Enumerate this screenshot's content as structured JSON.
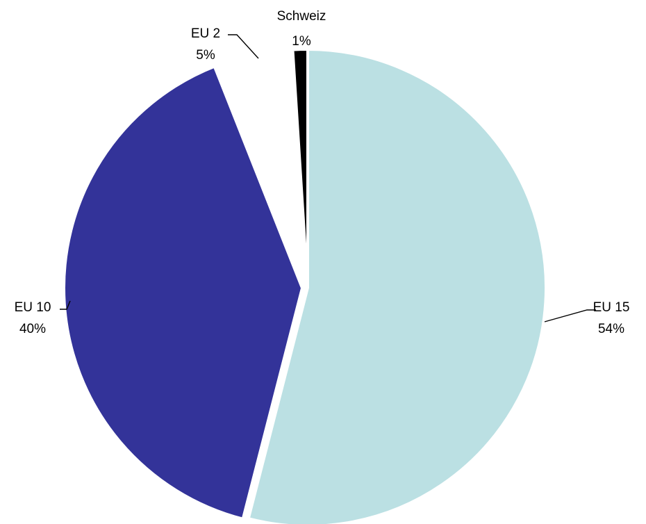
{
  "chart_data": {
    "type": "pie",
    "title": "",
    "slices": [
      {
        "label": "EU 15",
        "value": 54,
        "display": "54%",
        "color": "#bbe0e3"
      },
      {
        "label": "EU 10",
        "value": 40,
        "display": "40%",
        "color": "#333399"
      },
      {
        "label": "EU 2",
        "value": 5,
        "display": "5%",
        "color": "#ffffff"
      },
      {
        "label": "Schweiz",
        "value": 1,
        "display": "1%",
        "color": "#000000"
      }
    ],
    "legend": "none",
    "data_labels": "outside-with-leader-lines"
  }
}
